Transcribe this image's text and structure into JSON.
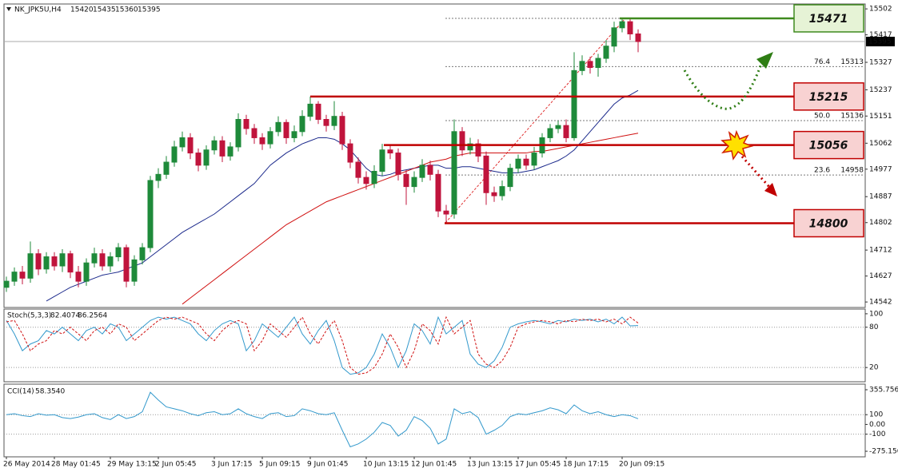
{
  "chart_data": [
    {
      "type": "candlestick",
      "title": "NK_JPK5U,H4",
      "categories": [
        "26 May 2014",
        null,
        null,
        null,
        null,
        null,
        "28 May 01:45",
        null,
        null,
        null,
        null,
        null,
        null,
        "29 May 13:15",
        null,
        null,
        null,
        null,
        null,
        "2 Jun 05:45",
        null,
        null,
        null,
        null,
        null,
        null,
        "3 Jun 17:15",
        null,
        null,
        null,
        null,
        null,
        "5 Jun 09:15",
        null,
        null,
        null,
        null,
        null,
        "9 Jun 01:45",
        null,
        null,
        null,
        null,
        null,
        null,
        "10 Jun 13:15",
        null,
        null,
        null,
        null,
        null,
        "12 Jun 01:45",
        null,
        null,
        null,
        null,
        null,
        null,
        "13 Jun 13:15",
        null,
        null,
        null,
        null,
        null,
        "17 Jun 05:45",
        null,
        null,
        null,
        null,
        null,
        "18 Jun 17:15",
        null,
        null,
        null,
        null,
        null,
        null,
        "20 Jun 09:15",
        null,
        null
      ],
      "open": [
        14590,
        14610,
        14640,
        14620,
        14700,
        14650,
        14690,
        14660,
        14700,
        14640,
        14610,
        14670,
        14700,
        14660,
        14690,
        14720,
        14610,
        14680,
        14720,
        14940,
        14960,
        15000,
        15050,
        15080,
        15030,
        14990,
        15040,
        15070,
        15020,
        15050,
        15140,
        15110,
        15080,
        15060,
        15100,
        15130,
        15080,
        15100,
        15150,
        15190,
        15140,
        15120,
        15150,
        15060,
        15000,
        14950,
        14930,
        14970,
        15040,
        15030,
        14960,
        14920,
        14950,
        14990,
        14960,
        14840,
        14830,
        15100,
        15040,
        15060,
        15020,
        14900,
        14890,
        14920,
        14980,
        15010,
        14990,
        15030,
        15080,
        15110,
        15120,
        15080,
        15300,
        15330,
        15310,
        15340,
        15380,
        15440,
        15460,
        15420
      ],
      "high": [
        14625,
        14655,
        14660,
        14740,
        14715,
        14705,
        14705,
        14715,
        14710,
        14660,
        14685,
        14720,
        14715,
        14705,
        14735,
        14730,
        14695,
        14735,
        14955,
        14980,
        15020,
        15070,
        15100,
        15095,
        15045,
        15055,
        15085,
        15085,
        15065,
        15160,
        15155,
        15125,
        15095,
        15115,
        15150,
        15140,
        15120,
        15170,
        15215,
        15200,
        15155,
        15200,
        15165,
        15075,
        15015,
        14970,
        14990,
        15060,
        15055,
        15045,
        14975,
        14970,
        15010,
        15005,
        14975,
        14860,
        15140,
        15115,
        15080,
        15075,
        15035,
        14920,
        14940,
        14995,
        15025,
        15025,
        15050,
        15095,
        15125,
        15135,
        15140,
        15360,
        15350,
        15345,
        15355,
        15400,
        15460,
        15471,
        15470,
        15435
      ],
      "low": [
        14575,
        14595,
        14600,
        14605,
        14630,
        14635,
        14645,
        14640,
        14620,
        14590,
        14595,
        14655,
        14645,
        14640,
        14675,
        14590,
        14595,
        14665,
        14705,
        14915,
        14945,
        14985,
        15035,
        15010,
        14970,
        14975,
        15025,
        15000,
        15005,
        15035,
        15090,
        15060,
        15040,
        15045,
        15085,
        15060,
        15065,
        15085,
        15135,
        15125,
        15100,
        15105,
        15040,
        14980,
        14930,
        14910,
        14915,
        14955,
        15010,
        14940,
        14860,
        14900,
        14935,
        14940,
        14820,
        14800,
        14815,
        15020,
        15025,
        15000,
        14860,
        14870,
        14875,
        14905,
        14965,
        14975,
        14975,
        15015,
        15065,
        15095,
        15065,
        15070,
        15285,
        15290,
        15280,
        15325,
        15360,
        15425,
        15400,
        15360
      ],
      "close": [
        14610,
        14640,
        14620,
        14700,
        14650,
        14690,
        14660,
        14700,
        14640,
        14610,
        14670,
        14700,
        14660,
        14690,
        14720,
        14610,
        14680,
        14720,
        14940,
        14960,
        15000,
        15050,
        15080,
        15030,
        14990,
        15040,
        15070,
        15020,
        15050,
        15140,
        15110,
        15080,
        15060,
        15100,
        15130,
        15080,
        15100,
        15150,
        15190,
        15140,
        15120,
        15150,
        15060,
        15000,
        14950,
        14930,
        14970,
        15040,
        15030,
        14960,
        14920,
        14950,
        14990,
        14960,
        14840,
        14830,
        15100,
        15040,
        15060,
        15020,
        14900,
        14890,
        14920,
        14980,
        15010,
        14990,
        15030,
        15080,
        15110,
        15120,
        15080,
        15300,
        15330,
        15310,
        15340,
        15380,
        15440,
        15460,
        15420,
        15395
      ],
      "up_color": "#1e8a3a",
      "down_color": "#c0143c",
      "overlays": [
        {
          "color": "#1c2a8c",
          "values": [
            null,
            null,
            null,
            null,
            null,
            14545,
            14560,
            14575,
            14590,
            14600,
            14610,
            14620,
            14630,
            14635,
            14640,
            14650,
            14660,
            14670,
            14690,
            14710,
            14730,
            14750,
            14770,
            14785,
            14800,
            14815,
            14830,
            14850,
            14870,
            14890,
            14910,
            14930,
            14960,
            14990,
            15010,
            15030,
            15045,
            15060,
            15070,
            15080,
            15080,
            15075,
            15060,
            15040,
            15010,
            14980,
            14960,
            14955,
            14960,
            14970,
            14975,
            14980,
            14985,
            14990,
            14990,
            14980,
            14980,
            14985,
            14985,
            14980,
            14975,
            14970,
            14965,
            14965,
            14965,
            14970,
            14975,
            14985,
            14995,
            15005,
            15020,
            15040,
            15070,
            15100,
            15130,
            15160,
            15190,
            15210,
            15220,
            15235
          ]
        },
        {
          "color": "#d01010",
          "values": [
            null,
            null,
            null,
            null,
            null,
            null,
            null,
            null,
            null,
            null,
            null,
            null,
            null,
            null,
            null,
            null,
            null,
            null,
            null,
            null,
            null,
            null,
            14535,
            14555,
            14575,
            14595,
            14615,
            14635,
            14655,
            14675,
            14695,
            14715,
            14735,
            14755,
            14775,
            14795,
            14810,
            14825,
            14840,
            14855,
            14870,
            14880,
            14890,
            14900,
            14910,
            14920,
            14930,
            14940,
            14950,
            14960,
            14970,
            14980,
            14990,
            15000,
            15005,
            15010,
            15020,
            15025,
            15030,
            15030,
            15030,
            15030,
            15030,
            15030,
            15030,
            15030,
            15035,
            15035,
            15040,
            15045,
            15050,
            15055,
            15060,
            15065,
            15070,
            15075,
            15080,
            15085,
            15090,
            15095
          ]
        }
      ],
      "ylim": [
        14524,
        15518
      ],
      "yticks": [
        15502,
        15417,
        15327,
        15237,
        15151,
        15062,
        14977,
        14887,
        14802,
        14712,
        14627,
        14542
      ],
      "levels": [
        {
          "value": 15471,
          "color": "#3f8a1e",
          "fill": "#e6f3d6"
        },
        {
          "value": 15215,
          "color": "#c00000",
          "fill": "#f8d2d2"
        },
        {
          "value": 15056,
          "color": "#c00000",
          "fill": "#f8d2d2"
        },
        {
          "value": 14800,
          "color": "#c00000",
          "fill": "#f8d2d2"
        }
      ],
      "fib": [
        {
          "ratio": "76.4",
          "value": 15313
        },
        {
          "ratio": "50.0",
          "value": 15136
        },
        {
          "ratio": "23.6",
          "value": 14958
        }
      ]
    },
    {
      "type": "line",
      "title": "Stoch(5,3,3)",
      "series": [
        {
          "color": "#3399cc",
          "dash": false,
          "values": [
            90,
            70,
            45,
            55,
            60,
            75,
            70,
            80,
            70,
            60,
            75,
            80,
            70,
            85,
            80,
            60,
            70,
            80,
            90,
            95,
            92,
            95,
            90,
            85,
            70,
            60,
            75,
            85,
            90,
            85,
            45,
            60,
            85,
            75,
            65,
            80,
            95,
            70,
            55,
            75,
            90,
            60,
            20,
            10,
            12,
            20,
            40,
            70,
            50,
            20,
            45,
            85,
            75,
            55,
            95,
            70,
            80,
            90,
            40,
            25,
            20,
            30,
            50,
            80,
            85,
            88,
            90,
            88,
            85,
            90,
            88,
            92,
            90,
            92,
            88,
            92,
            85,
            95,
            82,
            82.4074
          ]
        },
        {
          "color": "#d01010",
          "dash": true,
          "values": [
            88,
            90,
            70,
            45,
            55,
            60,
            75,
            70,
            80,
            70,
            60,
            75,
            80,
            70,
            85,
            80,
            60,
            70,
            80,
            90,
            95,
            92,
            95,
            90,
            85,
            70,
            60,
            75,
            85,
            90,
            85,
            45,
            60,
            85,
            75,
            65,
            80,
            95,
            70,
            55,
            75,
            90,
            60,
            20,
            10,
            12,
            20,
            40,
            70,
            50,
            20,
            45,
            85,
            75,
            55,
            95,
            70,
            80,
            90,
            40,
            25,
            20,
            30,
            50,
            80,
            85,
            88,
            90,
            88,
            85,
            90,
            88,
            92,
            90,
            92,
            88,
            92,
            85,
            95,
            86.2564
          ]
        }
      ],
      "ylim": [
        0,
        107
      ],
      "yticks": [
        100,
        80,
        20
      ],
      "levels": [
        80,
        20
      ]
    },
    {
      "type": "line",
      "title": "CCI(14)",
      "last_label": "58.3540",
      "series": [
        {
          "color": "#3399cc",
          "dash": false,
          "values": [
            100,
            110,
            90,
            80,
            110,
            95,
            100,
            70,
            60,
            75,
            100,
            110,
            70,
            50,
            100,
            60,
            80,
            130,
            330,
            250,
            180,
            160,
            140,
            110,
            90,
            120,
            130,
            100,
            110,
            160,
            110,
            80,
            60,
            110,
            120,
            80,
            90,
            160,
            140,
            110,
            100,
            120,
            -60,
            -230,
            -200,
            -150,
            -80,
            20,
            -10,
            -120,
            -60,
            80,
            40,
            -40,
            -200,
            -150,
            160,
            110,
            130,
            70,
            -100,
            -60,
            -10,
            80,
            110,
            100,
            120,
            140,
            170,
            150,
            110,
            200,
            140,
            110,
            130,
            100,
            80,
            100,
            90,
            58.354
          ]
        }
      ],
      "ylim": [
        -324,
        413
      ],
      "yticks": [
        355.7562,
        100,
        {
          "value": 0,
          "label": "0.00"
        },
        -100,
        -275.156
      ],
      "levels": [
        100,
        -100
      ]
    }
  ]
}
